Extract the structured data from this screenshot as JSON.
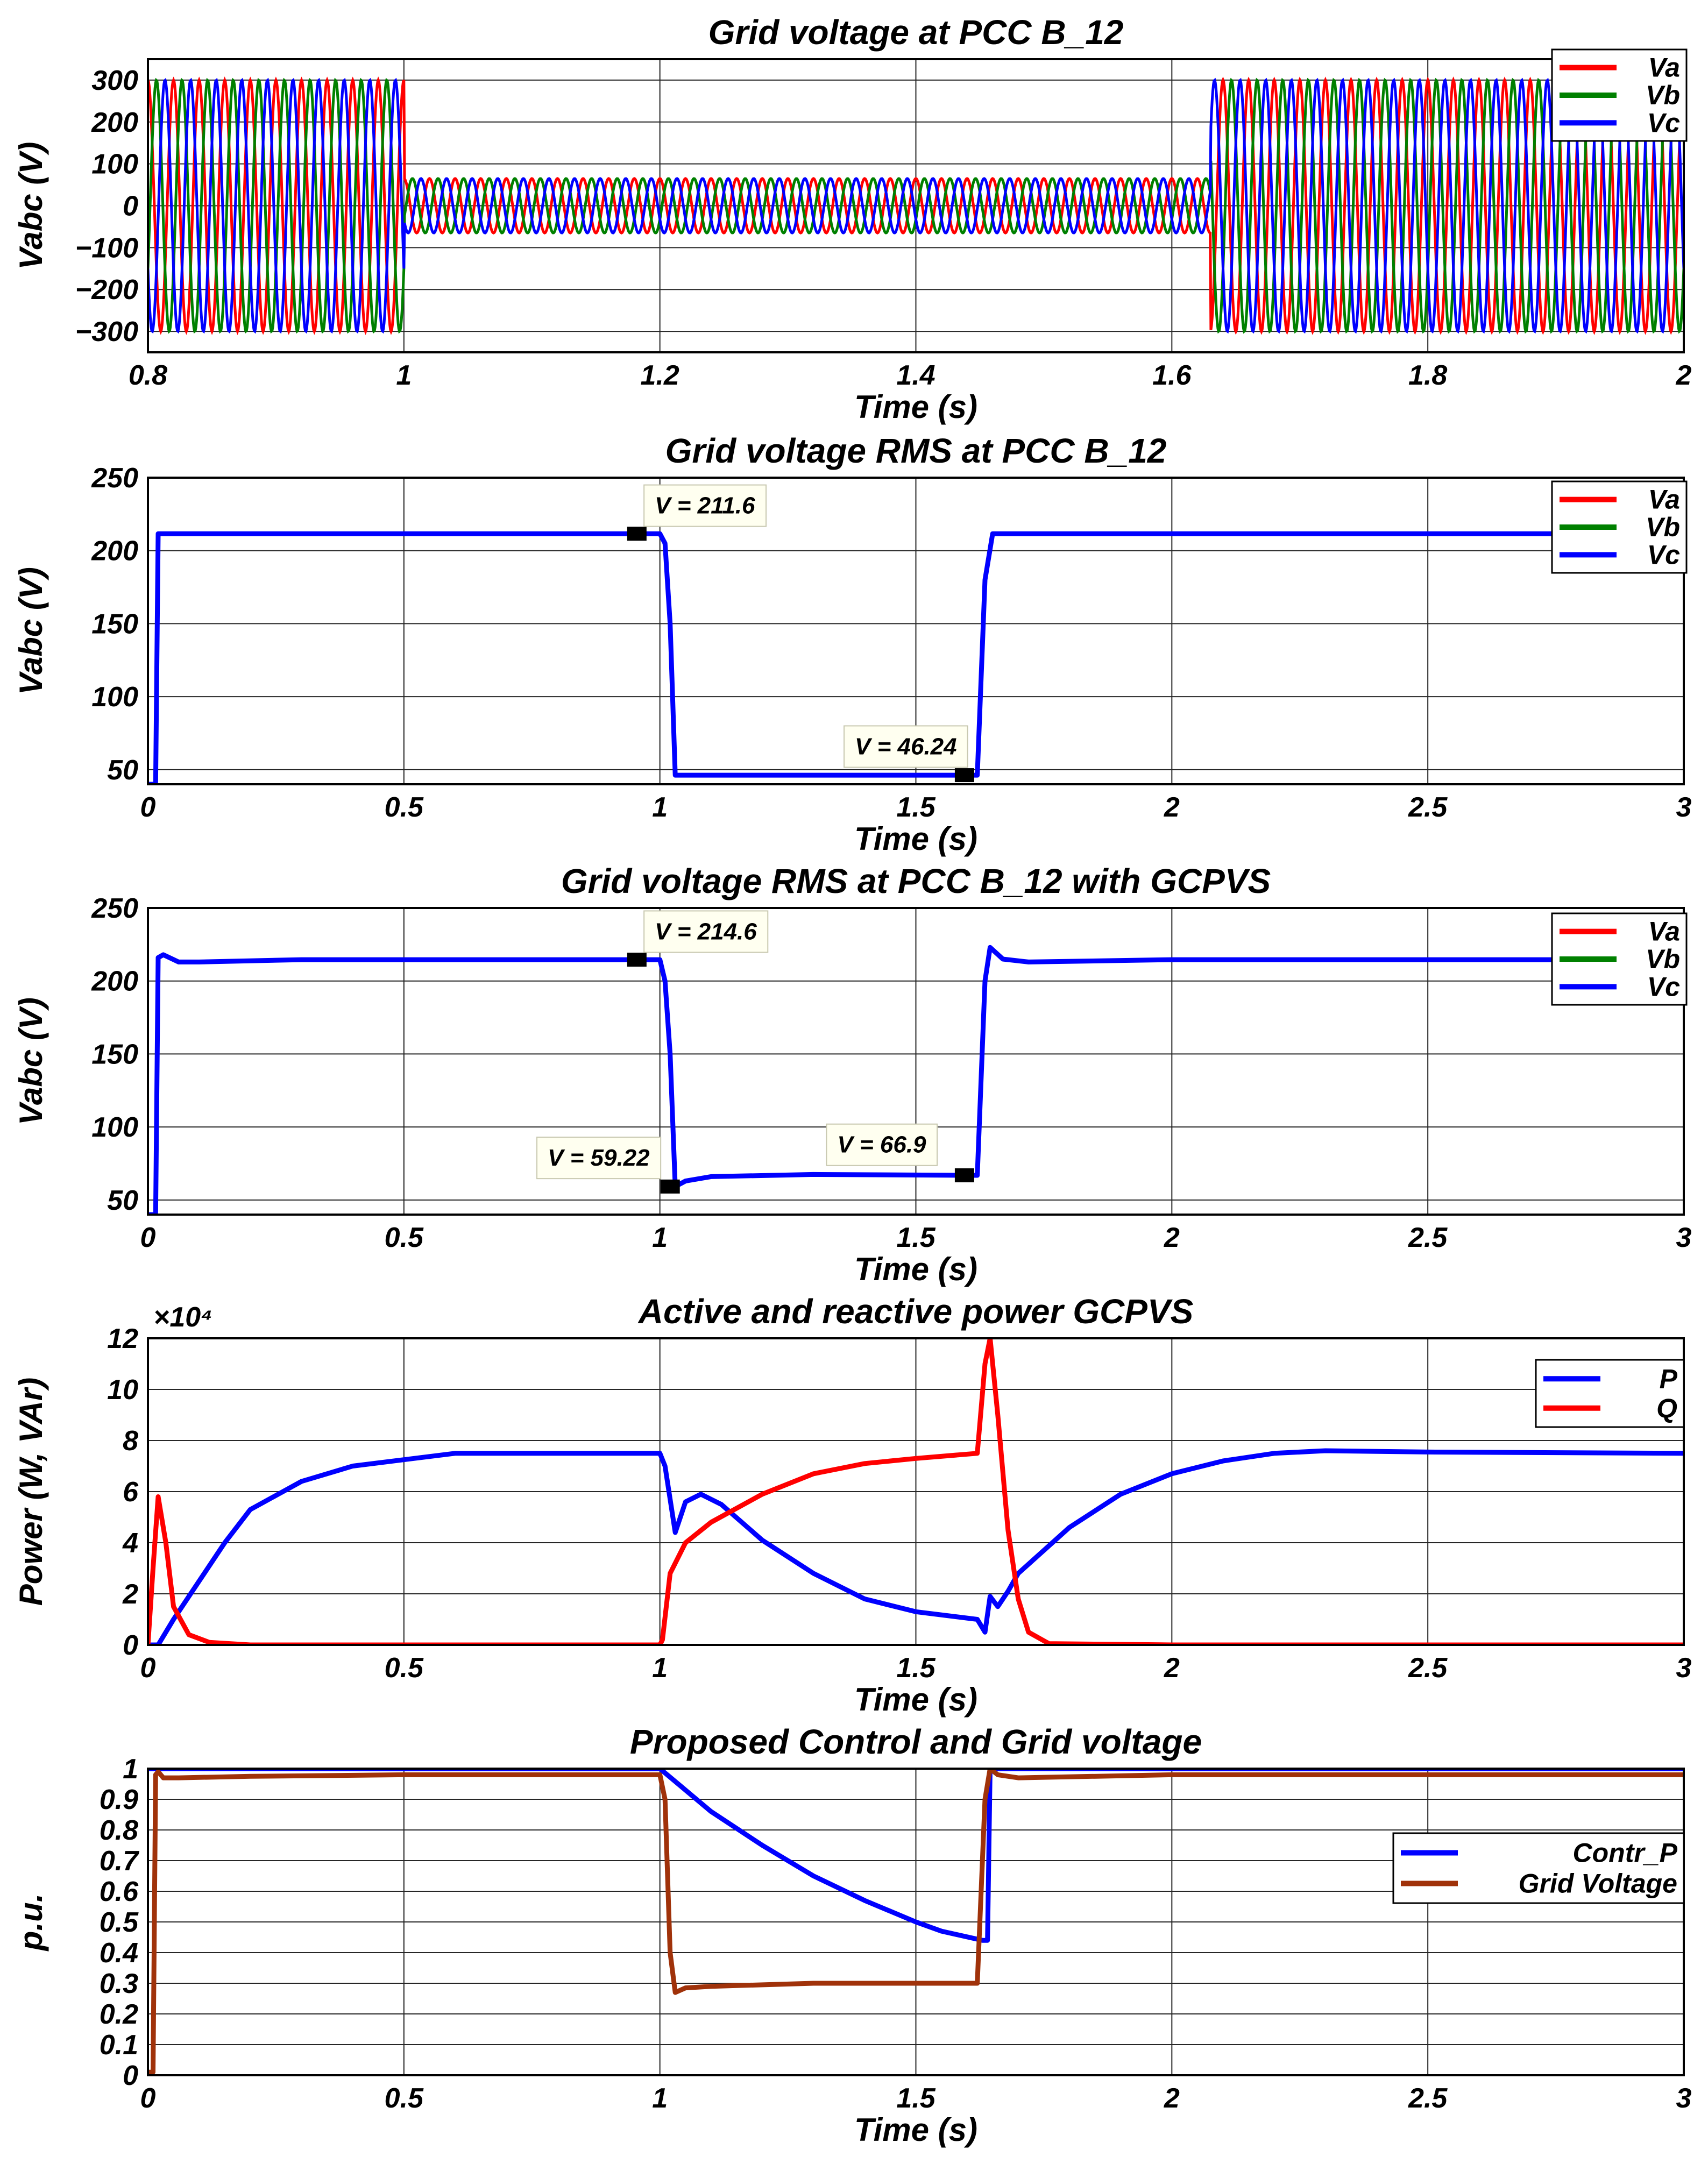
{
  "colors": {
    "va": "#ff0000",
    "vb": "#008000",
    "vc": "#0000ff",
    "p": "#0000ff",
    "q": "#ff0000",
    "contr": "#0000ff",
    "grid": "#a0320a",
    "annot_bg": "#fffff0"
  },
  "chart_data": [
    {
      "id": "c1",
      "type": "line",
      "title": "Grid voltage at PCC B_12",
      "xlabel": "Time (s)",
      "ylabel": "Vabc (V)",
      "xlim": [
        0.8,
        2.0
      ],
      "ylim": [
        -350,
        350
      ],
      "xticks": [
        0.8,
        1.0,
        1.2,
        1.4,
        1.6,
        1.8,
        2.0
      ],
      "xtick_labels": [
        "0.8",
        "1",
        "1.2",
        "1.4",
        "1.6",
        "1.8",
        "2"
      ],
      "yticks": [
        300,
        200,
        100,
        0,
        -100,
        -200,
        -300
      ],
      "ytick_labels": [
        "300",
        "200",
        "100",
        "0",
        "−100",
        "−200",
        "−300"
      ],
      "legend": {
        "position": "top-right",
        "entries": [
          {
            "label": "Va",
            "color_key": "va"
          },
          {
            "label": "Vb",
            "color_key": "vb"
          },
          {
            "label": "Vc",
            "color_key": "vc"
          }
        ]
      },
      "sine": {
        "frequency_hz": 50,
        "amplitude_normal": 300,
        "amplitude_sag": 65,
        "sag_start": 1.0,
        "sag_end": 1.63,
        "phases_deg": [
          {
            "name": "Va",
            "color_key": "va",
            "phase": 90
          },
          {
            "name": "Vb",
            "color_key": "vb",
            "phase": -30
          },
          {
            "name": "Vc",
            "color_key": "vc",
            "phase": 210
          }
        ]
      }
    },
    {
      "id": "c2",
      "type": "line",
      "title": "Grid voltage RMS at PCC B_12",
      "xlabel": "Time (s)",
      "ylabel": "Vabc (V)",
      "xlim": [
        0,
        3
      ],
      "ylim": [
        40,
        250
      ],
      "xticks": [
        0,
        0.5,
        1,
        1.5,
        2,
        2.5,
        3
      ],
      "xtick_labels": [
        "0",
        "0.5",
        "1",
        "1.5",
        "2",
        "2.5",
        "3"
      ],
      "yticks": [
        250,
        200,
        150,
        100,
        50
      ],
      "ytick_labels": [
        "250",
        "200",
        "150",
        "100",
        "50"
      ],
      "legend": {
        "position": "top-right",
        "entries": [
          {
            "label": "Va",
            "color_key": "va"
          },
          {
            "label": "Vb",
            "color_key": "vb"
          },
          {
            "label": "Vc",
            "color_key": "vc"
          }
        ]
      },
      "series": [
        {
          "name": "Vc",
          "color_key": "vc",
          "x": [
            0,
            0.015,
            0.02,
            0.05,
            1.0,
            1.01,
            1.02,
            1.03,
            1.6,
            1.62,
            1.635,
            1.65,
            3.0
          ],
          "y": [
            40,
            40,
            211.6,
            211.6,
            211.6,
            205,
            150,
            46.24,
            46.24,
            46.24,
            180,
            211.6,
            211.6
          ]
        }
      ],
      "markers": [
        {
          "x": 0.955,
          "y": 211.6
        },
        {
          "x": 1.595,
          "y": 46.24
        }
      ],
      "annotations": [
        {
          "text": "V = 211.6",
          "x": 0.99,
          "y": 231,
          "anchor": "start"
        },
        {
          "text": "V = 46.24",
          "x": 1.58,
          "y": 66,
          "anchor": "end"
        }
      ]
    },
    {
      "id": "c3",
      "type": "line",
      "title": "Grid voltage RMS at PCC B_12 with GCPVS",
      "xlabel": "Time (s)",
      "ylabel": "Vabc (V)",
      "xlim": [
        0,
        3
      ],
      "ylim": [
        40,
        250
      ],
      "xticks": [
        0,
        0.5,
        1,
        1.5,
        2,
        2.5,
        3
      ],
      "xtick_labels": [
        "0",
        "0.5",
        "1",
        "1.5",
        "2",
        "2.5",
        "3"
      ],
      "yticks": [
        250,
        200,
        150,
        100,
        50
      ],
      "ytick_labels": [
        "250",
        "200",
        "150",
        "100",
        "50"
      ],
      "legend": {
        "position": "top-right",
        "entries": [
          {
            "label": "Va",
            "color_key": "va"
          },
          {
            "label": "Vb",
            "color_key": "vb"
          },
          {
            "label": "Vc",
            "color_key": "vc"
          }
        ]
      },
      "series": [
        {
          "name": "Vc",
          "color_key": "vc",
          "x": [
            0,
            0.015,
            0.02,
            0.03,
            0.06,
            0.1,
            0.3,
            1.0,
            1.01,
            1.02,
            1.03,
            1.05,
            1.1,
            1.3,
            1.6,
            1.62,
            1.635,
            1.645,
            1.67,
            1.72,
            2.0,
            3.0
          ],
          "y": [
            40,
            40,
            216,
            218,
            213,
            213,
            214.6,
            214.6,
            200,
            150,
            59.22,
            63,
            66,
            67.5,
            66.9,
            66.9,
            200,
            223,
            215,
            213,
            214.6,
            214.6
          ]
        }
      ],
      "markers": [
        {
          "x": 0.955,
          "y": 214.6
        },
        {
          "x": 1.02,
          "y": 59.22
        },
        {
          "x": 1.595,
          "y": 66.9
        }
      ],
      "annotations": [
        {
          "text": "V = 214.6",
          "x": 0.99,
          "y": 234,
          "anchor": "start"
        },
        {
          "text": "V = 59.22",
          "x": 0.98,
          "y": 79,
          "anchor": "end"
        },
        {
          "text": "V = 66.9",
          "x": 1.52,
          "y": 88,
          "anchor": "end"
        }
      ]
    },
    {
      "id": "c4",
      "type": "line",
      "title": "Active and reactive power GCPVS",
      "xlabel": "Time (s)",
      "ylabel": "Power (W, VAr)",
      "exponent_label": "×10⁴",
      "xlim": [
        0,
        3
      ],
      "ylim": [
        0,
        12
      ],
      "xticks": [
        0,
        0.5,
        1,
        1.5,
        2,
        2.5,
        3
      ],
      "xtick_labels": [
        "0",
        "0.5",
        "1",
        "1.5",
        "2",
        "2.5",
        "3"
      ],
      "yticks": [
        12,
        10,
        8,
        6,
        4,
        2,
        0
      ],
      "ytick_labels": [
        "12",
        "10",
        "8",
        "6",
        "4",
        "2",
        "0"
      ],
      "legend": {
        "position": "top-right",
        "entries": [
          {
            "label": "P",
            "color_key": "p"
          },
          {
            "label": "Q",
            "color_key": "q"
          }
        ]
      },
      "series": [
        {
          "name": "P",
          "color_key": "p",
          "x": [
            0,
            0.02,
            0.05,
            0.1,
            0.15,
            0.2,
            0.3,
            0.4,
            0.6,
            0.8,
            1.0,
            1.01,
            1.03,
            1.05,
            1.08,
            1.12,
            1.2,
            1.3,
            1.4,
            1.5,
            1.62,
            1.635,
            1.645,
            1.66,
            1.68,
            1.7,
            1.8,
            1.9,
            2.0,
            2.1,
            2.2,
            2.3,
            2.5,
            3.0
          ],
          "y": [
            0,
            0,
            1.0,
            2.5,
            4.0,
            5.3,
            6.4,
            7.0,
            7.5,
            7.5,
            7.5,
            7.0,
            4.4,
            5.6,
            5.9,
            5.5,
            4.1,
            2.8,
            1.8,
            1.3,
            1.0,
            0.5,
            1.9,
            1.5,
            2.1,
            2.8,
            4.6,
            5.9,
            6.7,
            7.2,
            7.5,
            7.6,
            7.55,
            7.5
          ]
        },
        {
          "name": "Q",
          "color_key": "q",
          "x": [
            0,
            0.01,
            0.02,
            0.035,
            0.05,
            0.08,
            0.12,
            0.2,
            0.5,
            1.0,
            1.005,
            1.02,
            1.05,
            1.1,
            1.2,
            1.3,
            1.4,
            1.5,
            1.62,
            1.635,
            1.645,
            1.66,
            1.68,
            1.7,
            1.72,
            1.76,
            2.0,
            3.0
          ],
          "y": [
            0,
            3.0,
            5.8,
            4.0,
            1.5,
            0.4,
            0.1,
            0.0,
            0.0,
            0.0,
            0.2,
            2.8,
            4.0,
            4.8,
            5.9,
            6.7,
            7.1,
            7.3,
            7.5,
            11.0,
            12.0,
            9.0,
            4.5,
            1.8,
            0.5,
            0.05,
            0.0,
            0.0
          ]
        }
      ]
    },
    {
      "id": "c5",
      "type": "line",
      "title": "Proposed Control and Grid voltage",
      "xlabel": "Time (s)",
      "ylabel": "p.u.",
      "xlim": [
        0,
        3
      ],
      "ylim": [
        0,
        1.0
      ],
      "xticks": [
        0,
        0.5,
        1,
        1.5,
        2,
        2.5,
        3
      ],
      "xtick_labels": [
        "0",
        "0.5",
        "1",
        "1.5",
        "2",
        "2.5",
        "3"
      ],
      "yticks": [
        1,
        0.9,
        0.8,
        0.7,
        0.6,
        0.5,
        0.4,
        0.3,
        0.2,
        0.1,
        0
      ],
      "ytick_labels": [
        "1",
        "0.9",
        "0.8",
        "0.7",
        "0.6",
        "0.5",
        "0.4",
        "0.3",
        "0.2",
        "0.1",
        "0"
      ],
      "legend": {
        "position": "right",
        "entries": [
          {
            "label": "Contr_P",
            "color_key": "contr"
          },
          {
            "label": "Grid Voltage",
            "color_key": "grid"
          }
        ]
      },
      "series": [
        {
          "name": "Contr_P",
          "color_key": "contr",
          "x": [
            0,
            1.0,
            1.05,
            1.1,
            1.2,
            1.3,
            1.4,
            1.5,
            1.55,
            1.63,
            1.64,
            1.645,
            3.0
          ],
          "y": [
            1,
            1,
            0.93,
            0.86,
            0.75,
            0.65,
            0.57,
            0.5,
            0.47,
            0.44,
            0.44,
            1,
            1
          ]
        },
        {
          "name": "Grid Voltage",
          "color_key": "grid",
          "x": [
            0,
            0.01,
            0.015,
            0.02,
            0.03,
            0.06,
            0.2,
            0.5,
            1.0,
            1.01,
            1.02,
            1.03,
            1.05,
            1.1,
            1.3,
            1.62,
            1.635,
            1.645,
            1.66,
            1.7,
            2.0,
            3.0
          ],
          "y": [
            0.01,
            0.01,
            0.98,
            0.99,
            0.97,
            0.97,
            0.975,
            0.98,
            0.98,
            0.9,
            0.4,
            0.27,
            0.285,
            0.29,
            0.3,
            0.3,
            0.9,
            1.0,
            0.98,
            0.97,
            0.98,
            0.98
          ]
        }
      ]
    }
  ]
}
